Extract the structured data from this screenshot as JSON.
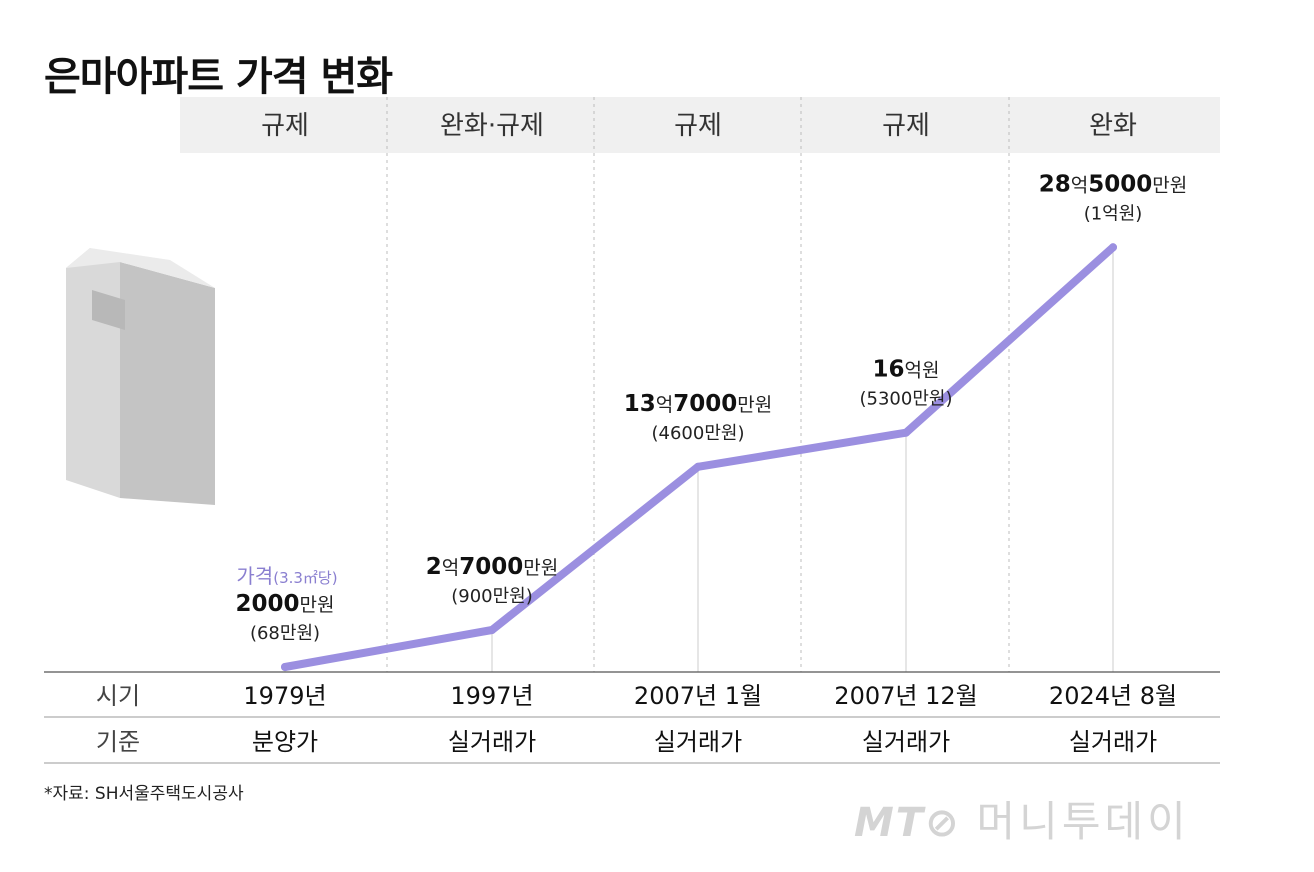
{
  "title": "은마아파트 가격 변화",
  "chart_data": {
    "type": "line",
    "title": "은마아파트 가격 변화",
    "legend_label": "가격",
    "legend_note": "(3.3㎡당)",
    "color": "#9b8fe0",
    "ylim": [
      0,
      30
    ],
    "y_unit": "억원",
    "periods": [
      "1979년",
      "1997년",
      "2007년 1월",
      "2007년 12월",
      "2024년 8월"
    ],
    "policy": [
      "규제",
      "완화·규제",
      "규제",
      "규제",
      "완화"
    ],
    "basis": [
      "분양가",
      "실거래가",
      "실거래가",
      "실거래가",
      "실거래가"
    ],
    "values": [
      0.2,
      2.7,
      13.7,
      16,
      28.5
    ],
    "labels": [
      {
        "main": "2000",
        "unit": "만원",
        "sub": "(68만원)"
      },
      {
        "main": "2",
        "unit": "억",
        "main2": "7000",
        "unit2": "만원",
        "sub": "(900만원)"
      },
      {
        "main": "13",
        "unit": "억",
        "main2": "7000",
        "unit2": "만원",
        "sub": "(4600만원)"
      },
      {
        "main": "16",
        "unit": "억원",
        "sub": "(5300만원)"
      },
      {
        "main": "28",
        "unit": "억",
        "main2": "5000",
        "unit2": "만원",
        "sub": "(1억원)"
      }
    ]
  },
  "table": {
    "period_header": "시기",
    "basis_header": "기준"
  },
  "source": "*자료: SH서울주택도시공사",
  "watermark": {
    "logo": "MT",
    "brand": "머니투데이"
  }
}
